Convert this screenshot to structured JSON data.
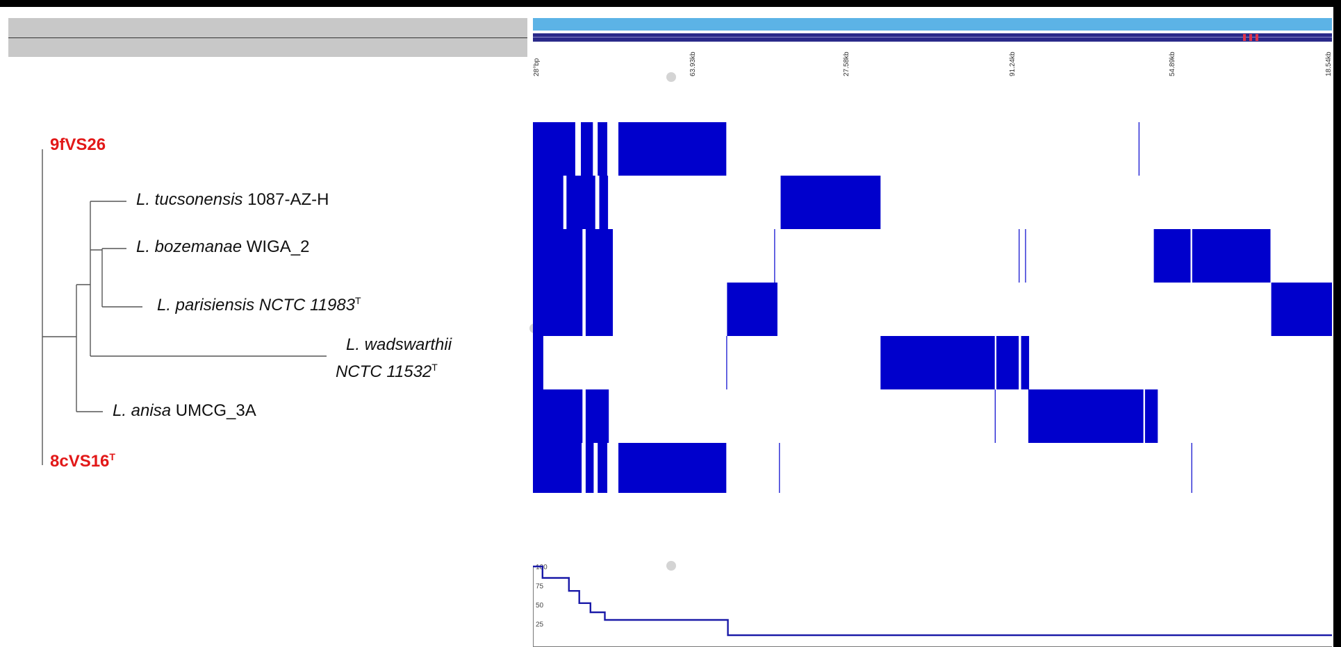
{
  "tick_labels": [
    "28°bp",
    "63.93kb",
    "27.58kb",
    "91.24kb",
    "54.89kb",
    "18.54kb"
  ],
  "tree": {
    "leaves": [
      {
        "id": "9fVS26",
        "prefix": "",
        "name": "9fVS26",
        "suffix": "",
        "sup": "",
        "highlight": true
      },
      {
        "id": "tucsonensis",
        "prefix": "L. tucsonensis",
        "name": " 1087-AZ-H",
        "suffix": "",
        "sup": "",
        "highlight": false
      },
      {
        "id": "bozemanae",
        "prefix": "L. bozemanae",
        "name": " WIGA_2",
        "suffix": "",
        "sup": "",
        "highlight": false
      },
      {
        "id": "parisiensis",
        "prefix": "L. parisiensis NCTC 11983",
        "name": "",
        "suffix": "",
        "sup": "T",
        "highlight": false
      },
      {
        "id": "wadswarthii_1",
        "prefix": "L. wadswarthii",
        "name": "",
        "suffix": "",
        "sup": "",
        "highlight": false
      },
      {
        "id": "wadswarthii_2",
        "prefix": "NCTC 11532",
        "name": "",
        "suffix": "",
        "sup": "T",
        "highlight": false
      },
      {
        "id": "anisa",
        "prefix": "L. anisa",
        "name": " UMCG_3A",
        "suffix": "",
        "sup": "",
        "highlight": false
      },
      {
        "id": "8cVS16",
        "prefix": "",
        "name": "8cVS16",
        "suffix": "",
        "sup": "T",
        "highlight": true
      }
    ]
  },
  "profile_axis": [
    "100",
    "75",
    "50",
    "25"
  ],
  "colors": {
    "block": "#0000cc",
    "overview": "#5cb3e6",
    "navstrip": "#2a2a8a",
    "highlight_label": "#e21818",
    "profile_line": "#1a1aa8"
  },
  "chart_data": {
    "type": "heatmap",
    "title": "",
    "rows": [
      "9fVS26",
      "L. tucsonensis 1087-AZ-H",
      "L. bozemanae WIGA_2",
      "L. parisiensis NCTC 11983T",
      "L. wadswarthii NCTC 11532T",
      "L. anisa UMCG_3A",
      "8cVS16T"
    ],
    "x_range": [
      0,
      1
    ],
    "blocks": [
      {
        "row": 0,
        "start": 0.0,
        "end": 0.053
      },
      {
        "row": 0,
        "start": 0.06,
        "end": 0.075
      },
      {
        "row": 0,
        "start": 0.081,
        "end": 0.093
      },
      {
        "row": 0,
        "start": 0.107,
        "end": 0.242
      },
      {
        "row": 0,
        "start": 0.758,
        "end": 0.759
      },
      {
        "row": 1,
        "start": 0.0,
        "end": 0.038
      },
      {
        "row": 1,
        "start": 0.042,
        "end": 0.078
      },
      {
        "row": 1,
        "start": 0.083,
        "end": 0.094
      },
      {
        "row": 1,
        "start": 0.31,
        "end": 0.435
      },
      {
        "row": 2,
        "start": 0.0,
        "end": 0.062
      },
      {
        "row": 2,
        "start": 0.066,
        "end": 0.1
      },
      {
        "row": 2,
        "start": 0.302,
        "end": 0.303
      },
      {
        "row": 2,
        "start": 0.608,
        "end": 0.609
      },
      {
        "row": 2,
        "start": 0.616,
        "end": 0.617
      },
      {
        "row": 2,
        "start": 0.777,
        "end": 0.823
      },
      {
        "row": 2,
        "start": 0.825,
        "end": 0.923
      },
      {
        "row": 3,
        "start": 0.0,
        "end": 0.062
      },
      {
        "row": 3,
        "start": 0.066,
        "end": 0.1
      },
      {
        "row": 3,
        "start": 0.243,
        "end": 0.306
      },
      {
        "row": 3,
        "start": 0.924,
        "end": 1.0
      },
      {
        "row": 4,
        "start": 0.0,
        "end": 0.013
      },
      {
        "row": 4,
        "start": 0.242,
        "end": 0.243
      },
      {
        "row": 4,
        "start": 0.435,
        "end": 0.578
      },
      {
        "row": 4,
        "start": 0.58,
        "end": 0.608
      },
      {
        "row": 4,
        "start": 0.611,
        "end": 0.621
      },
      {
        "row": 5,
        "start": 0.0,
        "end": 0.062
      },
      {
        "row": 5,
        "start": 0.066,
        "end": 0.095
      },
      {
        "row": 5,
        "start": 0.578,
        "end": 0.579
      },
      {
        "row": 5,
        "start": 0.62,
        "end": 0.764
      },
      {
        "row": 5,
        "start": 0.766,
        "end": 0.782
      },
      {
        "row": 6,
        "start": 0.0,
        "end": 0.061
      },
      {
        "row": 6,
        "start": 0.066,
        "end": 0.076
      },
      {
        "row": 6,
        "start": 0.081,
        "end": 0.093
      },
      {
        "row": 6,
        "start": 0.107,
        "end": 0.242
      },
      {
        "row": 6,
        "start": 0.308,
        "end": 0.309
      },
      {
        "row": 6,
        "start": 0.824,
        "end": 0.825
      }
    ],
    "profile": {
      "ylim": [
        0,
        100
      ],
      "steps": [
        {
          "x": 0.0,
          "y": 100
        },
        {
          "x": 0.012,
          "y": 85
        },
        {
          "x": 0.045,
          "y": 68
        },
        {
          "x": 0.058,
          "y": 52
        },
        {
          "x": 0.072,
          "y": 40
        },
        {
          "x": 0.09,
          "y": 30
        },
        {
          "x": 0.244,
          "y": 10
        },
        {
          "x": 1.0,
          "y": 10
        }
      ]
    }
  }
}
